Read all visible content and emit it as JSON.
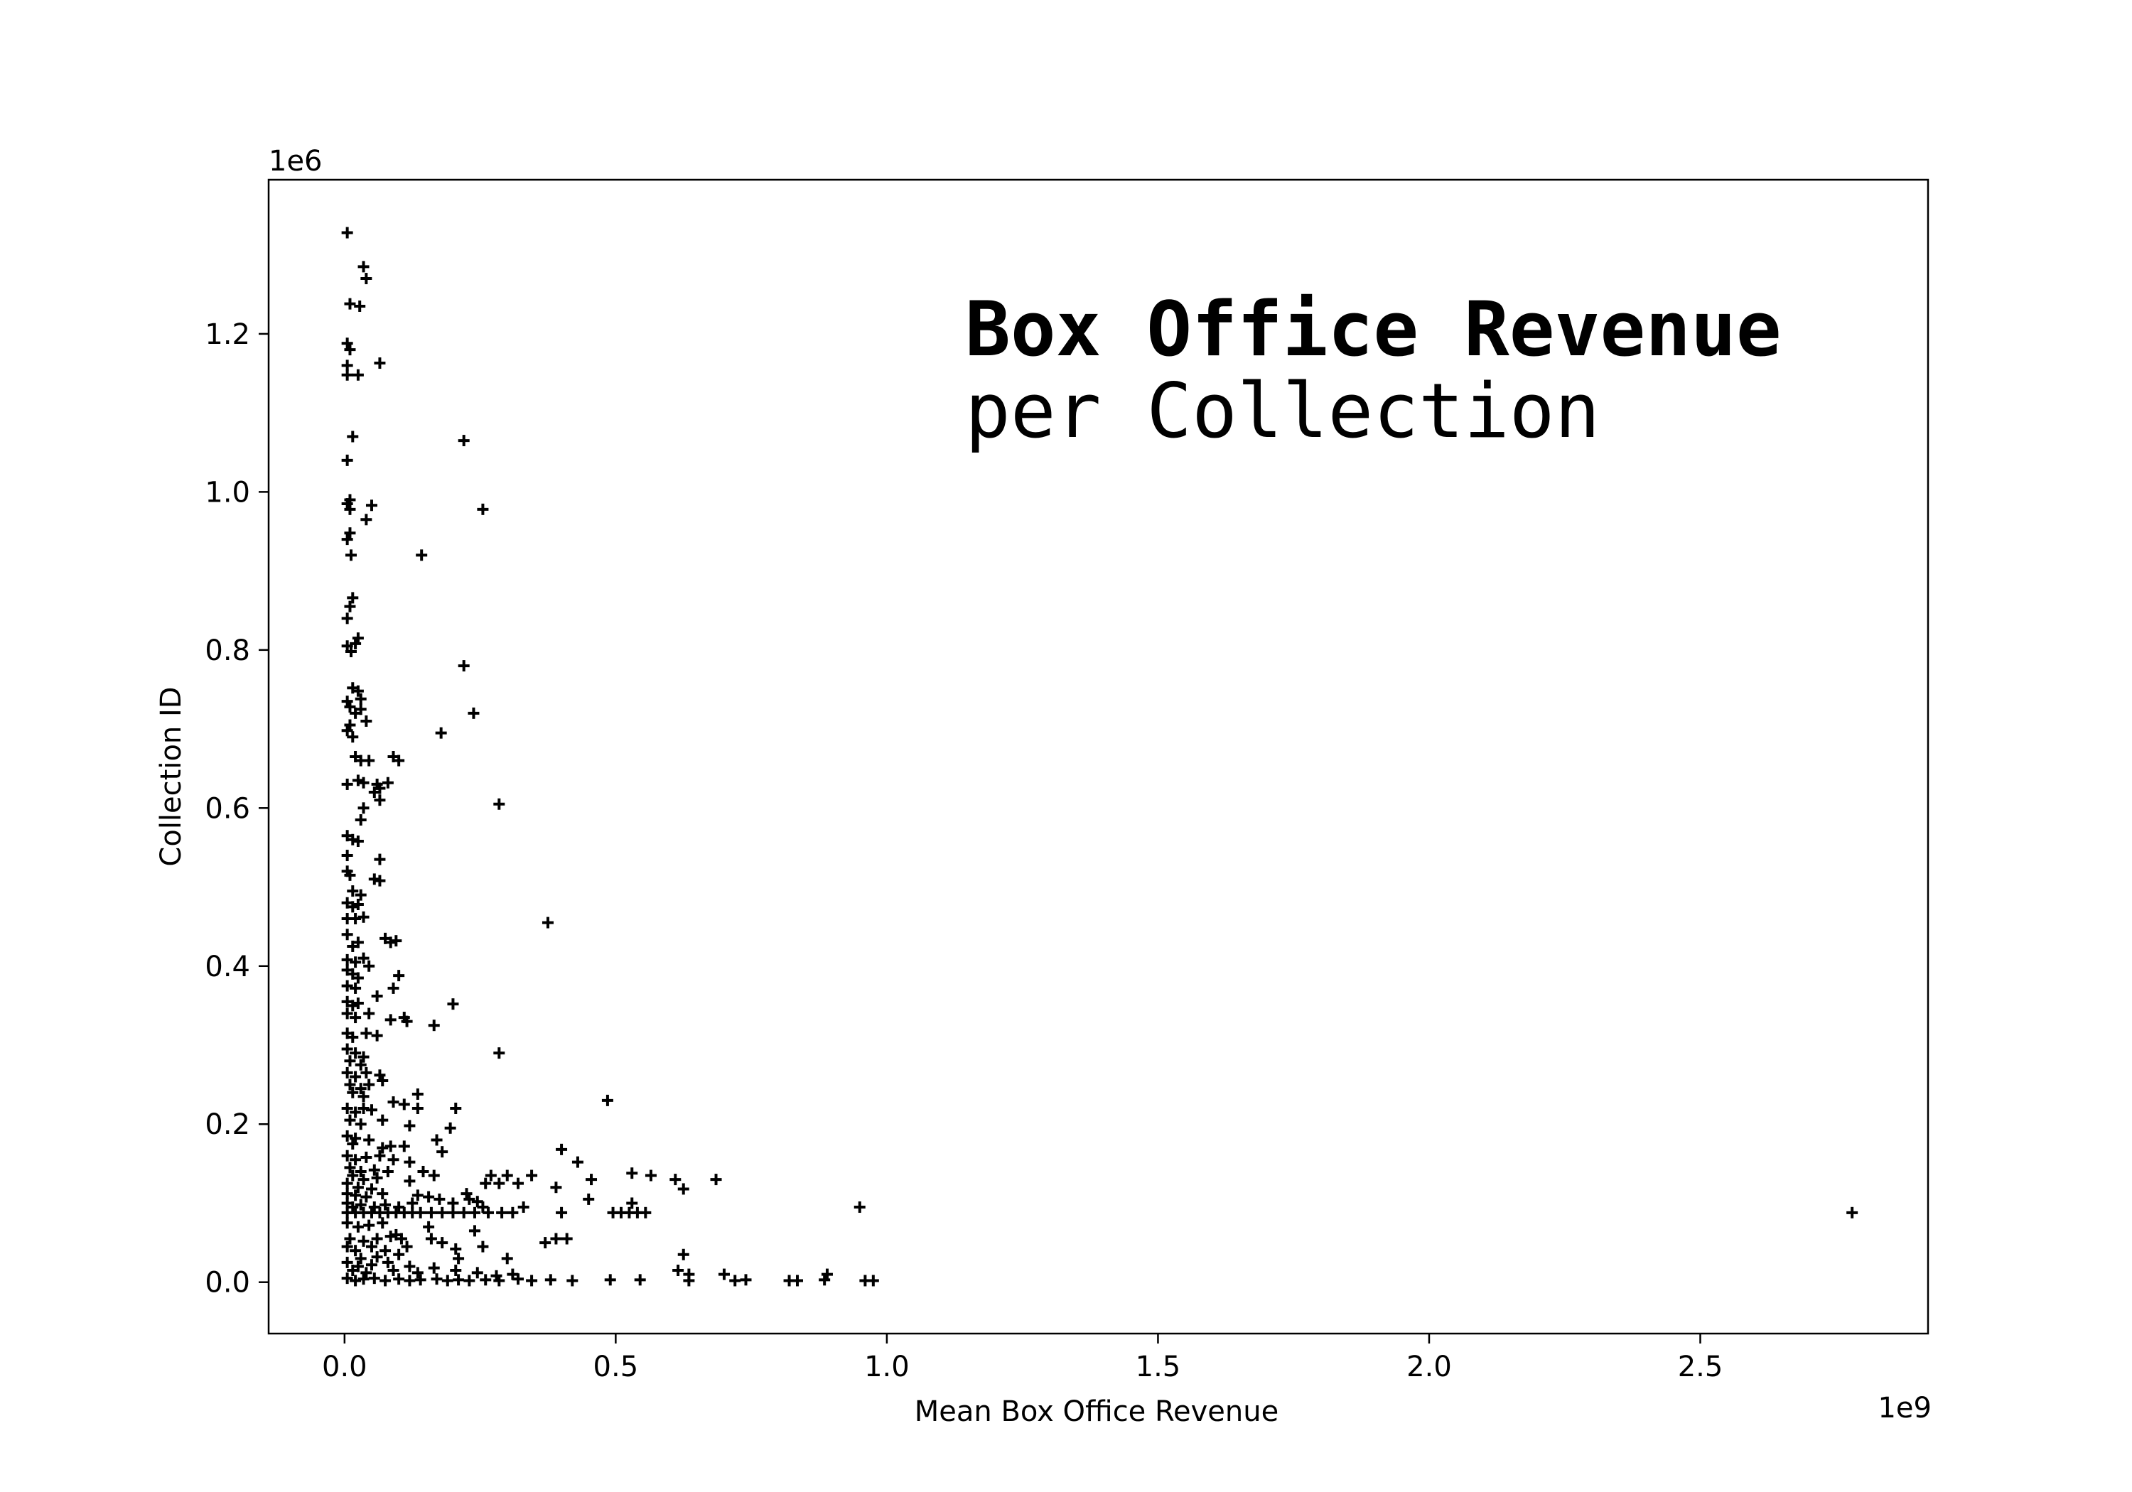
{
  "chart_data": {
    "type": "scatter",
    "title": "Box Office Revenue",
    "subtitle": "per Collection",
    "xlabel": "Mean Box Office Revenue",
    "ylabel": "Collection ID",
    "x_offset_label": "1e9",
    "y_offset_label": "1e6",
    "xlim": [
      -0.14,
      2.92
    ],
    "ylim": [
      -0.065,
      1.395
    ],
    "x_ticks": [
      0.0,
      0.5,
      1.0,
      1.5,
      2.0,
      2.5
    ],
    "x_tick_labels": [
      "0.0",
      "0.5",
      "1.0",
      "1.5",
      "2.0",
      "2.5"
    ],
    "y_ticks": [
      0.0,
      0.2,
      0.4,
      0.6,
      0.8,
      1.0,
      1.2
    ],
    "y_tick_labels": [
      "0.0",
      "0.2",
      "0.4",
      "0.6",
      "0.8",
      "1.0",
      "1.2"
    ],
    "grid": false,
    "legend": "none",
    "marker": "+",
    "color": "#000000",
    "x_units": "1e9",
    "y_units": "1e6",
    "points": [
      [
        0.005,
        1.328
      ],
      [
        0.035,
        1.285
      ],
      [
        0.04,
        1.27
      ],
      [
        0.01,
        1.238
      ],
      [
        0.028,
        1.235
      ],
      [
        0.005,
        1.188
      ],
      [
        0.01,
        1.18
      ],
      [
        0.005,
        1.16
      ],
      [
        0.005,
        1.148
      ],
      [
        0.025,
        1.148
      ],
      [
        0.065,
        1.163
      ],
      [
        0.015,
        1.07
      ],
      [
        0.005,
        1.04
      ],
      [
        0.22,
        1.065
      ],
      [
        0.01,
        0.99
      ],
      [
        0.005,
        0.985
      ],
      [
        0.01,
        0.978
      ],
      [
        0.05,
        0.983
      ],
      [
        0.04,
        0.965
      ],
      [
        0.255,
        0.978
      ],
      [
        0.01,
        0.948
      ],
      [
        0.005,
        0.94
      ],
      [
        0.012,
        0.92
      ],
      [
        0.142,
        0.92
      ],
      [
        0.015,
        0.866
      ],
      [
        0.01,
        0.855
      ],
      [
        0.005,
        0.84
      ],
      [
        0.025,
        0.815
      ],
      [
        0.02,
        0.808
      ],
      [
        0.005,
        0.805
      ],
      [
        0.012,
        0.798
      ],
      [
        0.22,
        0.78
      ],
      [
        0.015,
        0.752
      ],
      [
        0.025,
        0.748
      ],
      [
        0.03,
        0.738
      ],
      [
        0.005,
        0.735
      ],
      [
        0.01,
        0.728
      ],
      [
        0.03,
        0.725
      ],
      [
        0.02,
        0.72
      ],
      [
        0.238,
        0.72
      ],
      [
        0.04,
        0.71
      ],
      [
        0.01,
        0.705
      ],
      [
        0.005,
        0.698
      ],
      [
        0.015,
        0.69
      ],
      [
        0.178,
        0.695
      ],
      [
        0.02,
        0.665
      ],
      [
        0.03,
        0.66
      ],
      [
        0.045,
        0.66
      ],
      [
        0.09,
        0.665
      ],
      [
        0.1,
        0.66
      ],
      [
        0.005,
        0.63
      ],
      [
        0.025,
        0.635
      ],
      [
        0.035,
        0.632
      ],
      [
        0.06,
        0.63
      ],
      [
        0.08,
        0.632
      ],
      [
        0.065,
        0.625
      ],
      [
        0.055,
        0.62
      ],
      [
        0.065,
        0.61
      ],
      [
        0.285,
        0.605
      ],
      [
        0.035,
        0.6
      ],
      [
        0.03,
        0.585
      ],
      [
        0.005,
        0.565
      ],
      [
        0.015,
        0.56
      ],
      [
        0.025,
        0.558
      ],
      [
        0.005,
        0.54
      ],
      [
        0.065,
        0.535
      ],
      [
        0.005,
        0.52
      ],
      [
        0.01,
        0.515
      ],
      [
        0.055,
        0.51
      ],
      [
        0.065,
        0.508
      ],
      [
        0.015,
        0.495
      ],
      [
        0.03,
        0.49
      ],
      [
        0.005,
        0.48
      ],
      [
        0.015,
        0.475
      ],
      [
        0.025,
        0.478
      ],
      [
        0.005,
        0.46
      ],
      [
        0.02,
        0.46
      ],
      [
        0.035,
        0.462
      ],
      [
        0.375,
        0.455
      ],
      [
        0.005,
        0.44
      ],
      [
        0.015,
        0.425
      ],
      [
        0.025,
        0.43
      ],
      [
        0.075,
        0.435
      ],
      [
        0.085,
        0.43
      ],
      [
        0.095,
        0.432
      ],
      [
        0.005,
        0.408
      ],
      [
        0.02,
        0.405
      ],
      [
        0.035,
        0.41
      ],
      [
        0.045,
        0.4
      ],
      [
        0.005,
        0.395
      ],
      [
        0.015,
        0.39
      ],
      [
        0.025,
        0.385
      ],
      [
        0.1,
        0.388
      ],
      [
        0.005,
        0.375
      ],
      [
        0.02,
        0.372
      ],
      [
        0.09,
        0.372
      ],
      [
        0.005,
        0.355
      ],
      [
        0.015,
        0.35
      ],
      [
        0.025,
        0.353
      ],
      [
        0.06,
        0.362
      ],
      [
        0.2,
        0.352
      ],
      [
        0.005,
        0.34
      ],
      [
        0.02,
        0.335
      ],
      [
        0.045,
        0.34
      ],
      [
        0.085,
        0.332
      ],
      [
        0.11,
        0.335
      ],
      [
        0.115,
        0.33
      ],
      [
        0.165,
        0.325
      ],
      [
        0.005,
        0.315
      ],
      [
        0.015,
        0.31
      ],
      [
        0.04,
        0.315
      ],
      [
        0.06,
        0.312
      ],
      [
        0.005,
        0.295
      ],
      [
        0.02,
        0.29
      ],
      [
        0.035,
        0.285
      ],
      [
        0.01,
        0.28
      ],
      [
        0.03,
        0.275
      ],
      [
        0.285,
        0.29
      ],
      [
        0.005,
        0.265
      ],
      [
        0.02,
        0.26
      ],
      [
        0.04,
        0.265
      ],
      [
        0.065,
        0.262
      ],
      [
        0.07,
        0.255
      ],
      [
        0.01,
        0.25
      ],
      [
        0.03,
        0.245
      ],
      [
        0.045,
        0.25
      ],
      [
        0.015,
        0.24
      ],
      [
        0.035,
        0.235
      ],
      [
        0.135,
        0.238
      ],
      [
        0.485,
        0.23
      ],
      [
        0.005,
        0.22
      ],
      [
        0.02,
        0.215
      ],
      [
        0.035,
        0.22
      ],
      [
        0.05,
        0.218
      ],
      [
        0.09,
        0.228
      ],
      [
        0.11,
        0.225
      ],
      [
        0.205,
        0.22
      ],
      [
        0.135,
        0.22
      ],
      [
        0.01,
        0.205
      ],
      [
        0.03,
        0.2
      ],
      [
        0.07,
        0.205
      ],
      [
        0.12,
        0.198
      ],
      [
        0.195,
        0.195
      ],
      [
        0.005,
        0.185
      ],
      [
        0.02,
        0.182
      ],
      [
        0.045,
        0.18
      ],
      [
        0.17,
        0.18
      ],
      [
        0.015,
        0.175
      ],
      [
        0.07,
        0.17
      ],
      [
        0.085,
        0.172
      ],
      [
        0.11,
        0.172
      ],
      [
        0.18,
        0.165
      ],
      [
        0.4,
        0.168
      ],
      [
        0.005,
        0.16
      ],
      [
        0.02,
        0.155
      ],
      [
        0.04,
        0.158
      ],
      [
        0.065,
        0.16
      ],
      [
        0.09,
        0.155
      ],
      [
        0.12,
        0.152
      ],
      [
        0.43,
        0.152
      ],
      [
        0.01,
        0.145
      ],
      [
        0.03,
        0.14
      ],
      [
        0.055,
        0.142
      ],
      [
        0.08,
        0.14
      ],
      [
        0.145,
        0.14
      ],
      [
        0.015,
        0.135
      ],
      [
        0.035,
        0.13
      ],
      [
        0.06,
        0.132
      ],
      [
        0.12,
        0.128
      ],
      [
        0.165,
        0.135
      ],
      [
        0.27,
        0.135
      ],
      [
        0.3,
        0.135
      ],
      [
        0.345,
        0.135
      ],
      [
        0.455,
        0.13
      ],
      [
        0.53,
        0.138
      ],
      [
        0.565,
        0.135
      ],
      [
        0.61,
        0.13
      ],
      [
        0.685,
        0.13
      ],
      [
        0.005,
        0.125
      ],
      [
        0.025,
        0.12
      ],
      [
        0.05,
        0.118
      ],
      [
        0.26,
        0.125
      ],
      [
        0.285,
        0.125
      ],
      [
        0.32,
        0.125
      ],
      [
        0.625,
        0.118
      ],
      [
        0.39,
        0.12
      ],
      [
        0.005,
        0.112
      ],
      [
        0.02,
        0.11
      ],
      [
        0.04,
        0.108
      ],
      [
        0.07,
        0.112
      ],
      [
        0.135,
        0.11
      ],
      [
        0.155,
        0.108
      ],
      [
        0.225,
        0.112
      ],
      [
        0.175,
        0.105
      ],
      [
        0.2,
        0.1
      ],
      [
        0.23,
        0.105
      ],
      [
        0.245,
        0.102
      ],
      [
        0.45,
        0.105
      ],
      [
        0.53,
        0.1
      ],
      [
        0.255,
        0.095
      ],
      [
        0.33,
        0.095
      ],
      [
        0.005,
        0.1
      ],
      [
        0.015,
        0.095
      ],
      [
        0.03,
        0.098
      ],
      [
        0.055,
        0.095
      ],
      [
        0.075,
        0.098
      ],
      [
        0.1,
        0.095
      ],
      [
        0.125,
        0.1
      ],
      [
        0.95,
        0.095
      ],
      [
        0.005,
        0.088
      ],
      [
        0.02,
        0.088
      ],
      [
        0.035,
        0.088
      ],
      [
        0.05,
        0.088
      ],
      [
        0.065,
        0.088
      ],
      [
        0.08,
        0.088
      ],
      [
        0.095,
        0.088
      ],
      [
        0.11,
        0.088
      ],
      [
        0.125,
        0.088
      ],
      [
        0.14,
        0.088
      ],
      [
        0.16,
        0.088
      ],
      [
        0.18,
        0.088
      ],
      [
        0.2,
        0.088
      ],
      [
        0.22,
        0.088
      ],
      [
        0.24,
        0.088
      ],
      [
        0.265,
        0.088
      ],
      [
        0.29,
        0.088
      ],
      [
        0.31,
        0.088
      ],
      [
        0.4,
        0.088
      ],
      [
        0.495,
        0.088
      ],
      [
        0.51,
        0.088
      ],
      [
        0.525,
        0.088
      ],
      [
        0.54,
        0.088
      ],
      [
        0.555,
        0.088
      ],
      [
        2.78,
        0.088
      ],
      [
        0.005,
        0.075
      ],
      [
        0.025,
        0.07
      ],
      [
        0.045,
        0.072
      ],
      [
        0.07,
        0.075
      ],
      [
        0.155,
        0.07
      ],
      [
        0.24,
        0.065
      ],
      [
        0.095,
        0.06
      ],
      [
        0.01,
        0.055
      ],
      [
        0.035,
        0.052
      ],
      [
        0.06,
        0.055
      ],
      [
        0.085,
        0.058
      ],
      [
        0.105,
        0.055
      ],
      [
        0.16,
        0.055
      ],
      [
        0.18,
        0.05
      ],
      [
        0.37,
        0.05
      ],
      [
        0.39,
        0.055
      ],
      [
        0.41,
        0.055
      ],
      [
        0.005,
        0.045
      ],
      [
        0.02,
        0.04
      ],
      [
        0.05,
        0.045
      ],
      [
        0.075,
        0.04
      ],
      [
        0.115,
        0.045
      ],
      [
        0.205,
        0.042
      ],
      [
        0.255,
        0.045
      ],
      [
        0.1,
        0.035
      ],
      [
        0.03,
        0.03
      ],
      [
        0.06,
        0.032
      ],
      [
        0.21,
        0.03
      ],
      [
        0.3,
        0.03
      ],
      [
        0.625,
        0.035
      ],
      [
        0.005,
        0.025
      ],
      [
        0.025,
        0.02
      ],
      [
        0.05,
        0.022
      ],
      [
        0.08,
        0.025
      ],
      [
        0.12,
        0.02
      ],
      [
        0.165,
        0.018
      ],
      [
        0.015,
        0.015
      ],
      [
        0.04,
        0.012
      ],
      [
        0.09,
        0.015
      ],
      [
        0.135,
        0.012
      ],
      [
        0.205,
        0.015
      ],
      [
        0.245,
        0.012
      ],
      [
        0.615,
        0.015
      ],
      [
        0.635,
        0.01
      ],
      [
        0.7,
        0.01
      ],
      [
        0.89,
        0.01
      ],
      [
        0.28,
        0.008
      ],
      [
        0.31,
        0.01
      ],
      [
        0.005,
        0.005
      ],
      [
        0.02,
        0.002
      ],
      [
        0.035,
        0.004
      ],
      [
        0.055,
        0.005
      ],
      [
        0.075,
        0.002
      ],
      [
        0.1,
        0.004
      ],
      [
        0.12,
        0.002
      ],
      [
        0.14,
        0.003
      ],
      [
        0.17,
        0.004
      ],
      [
        0.19,
        0.002
      ],
      [
        0.21,
        0.003
      ],
      [
        0.23,
        0.002
      ],
      [
        0.26,
        0.003
      ],
      [
        0.285,
        0.002
      ],
      [
        0.32,
        0.004
      ],
      [
        0.345,
        0.002
      ],
      [
        0.38,
        0.003
      ],
      [
        0.42,
        0.002
      ],
      [
        0.49,
        0.003
      ],
      [
        0.545,
        0.003
      ],
      [
        0.635,
        0.002
      ],
      [
        0.72,
        0.002
      ],
      [
        0.74,
        0.003
      ],
      [
        0.82,
        0.002
      ],
      [
        0.835,
        0.002
      ],
      [
        0.885,
        0.003
      ],
      [
        0.96,
        0.002
      ],
      [
        0.975,
        0.002
      ]
    ]
  }
}
